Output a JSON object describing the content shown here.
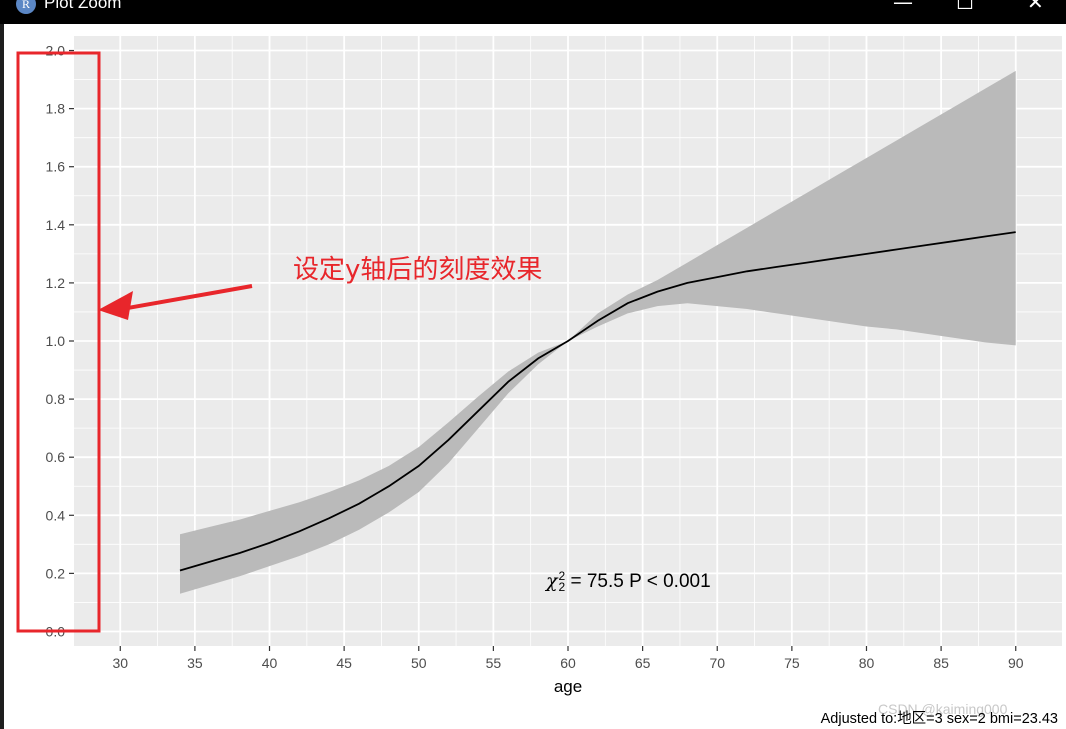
{
  "window": {
    "title": "Plot Zoom",
    "icon_letter": "R",
    "minimize_glyph": "—",
    "maximize_glyph": "☐",
    "close_glyph": "✕"
  },
  "chart_data": {
    "type": "line",
    "title": "",
    "xlabel": "age",
    "ylabel": "",
    "xlim": [
      26.9,
      93.1
    ],
    "ylim": [
      -0.05,
      2.05
    ],
    "xticks": [
      30,
      35,
      40,
      45,
      50,
      55,
      60,
      65,
      70,
      75,
      80,
      85,
      90
    ],
    "yticks": [
      0.0,
      0.2,
      0.4,
      0.6,
      0.8,
      1.0,
      1.2,
      1.4,
      1.6,
      1.8,
      2.0
    ],
    "ytick_labels": [
      "0.0",
      "0.2",
      "0.4",
      "0.6",
      "0.8",
      "1.0",
      "1.2",
      "1.4",
      "1.6",
      "1.8",
      "2.0"
    ],
    "grid": true,
    "colors": {
      "panel": "#ebebeb",
      "grid": "#ffffff",
      "line": "#000000",
      "ribbon": "#bababa"
    },
    "series": [
      {
        "x": [
          34,
          36,
          38,
          40,
          42,
          44,
          46,
          48,
          50,
          52,
          54,
          56,
          58,
          60,
          62,
          64,
          66,
          68,
          70,
          72,
          74,
          76,
          78,
          80,
          82,
          84,
          86,
          88,
          90
        ],
        "y": [
          0.21,
          0.24,
          0.27,
          0.305,
          0.345,
          0.39,
          0.44,
          0.5,
          0.57,
          0.66,
          0.76,
          0.86,
          0.94,
          1.0,
          1.07,
          1.13,
          1.17,
          1.2,
          1.22,
          1.24,
          1.255,
          1.27,
          1.285,
          1.3,
          1.315,
          1.33,
          1.345,
          1.36,
          1.375
        ],
        "lower": [
          0.13,
          0.16,
          0.19,
          0.225,
          0.26,
          0.3,
          0.35,
          0.41,
          0.48,
          0.58,
          0.7,
          0.82,
          0.92,
          1.0,
          1.05,
          1.095,
          1.12,
          1.13,
          1.12,
          1.11,
          1.095,
          1.08,
          1.065,
          1.05,
          1.04,
          1.025,
          1.01,
          0.995,
          0.985
        ],
        "upper": [
          0.335,
          0.36,
          0.385,
          0.415,
          0.445,
          0.48,
          0.52,
          0.57,
          0.635,
          0.72,
          0.81,
          0.895,
          0.96,
          1.0,
          1.095,
          1.16,
          1.21,
          1.27,
          1.33,
          1.39,
          1.45,
          1.51,
          1.57,
          1.63,
          1.69,
          1.75,
          1.81,
          1.87,
          1.93
        ]
      }
    ],
    "annotations": {
      "stat_chi": "χ",
      "stat_sup": "2",
      "stat_sub": "2",
      "stat_eq": "= 75.5  P < 0.001",
      "callout": "设定y轴后的刻度效果",
      "caption": "Adjusted to:地区=3 sex=2 bmi=23.43",
      "watermark": "CSDN @kaiming000"
    },
    "highlight_color": "#e8262b"
  }
}
